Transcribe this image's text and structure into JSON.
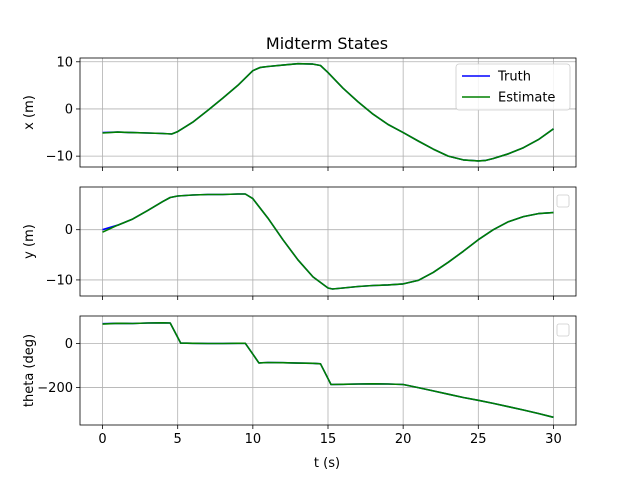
{
  "chart_data": {
    "type": "line",
    "title": "Midterm States",
    "xlabel": "t (s)",
    "xlim": [
      -1.5,
      31.5
    ],
    "xticks": [
      0,
      5,
      10,
      15,
      20,
      25,
      30
    ],
    "grid": true,
    "subplots": [
      {
        "ylabel": "x (m)",
        "ylim": [
          -12.3,
          10.8
        ],
        "yticks": [
          10,
          0,
          -10
        ],
        "legend": {
          "placement": "top-right",
          "entries": [
            "Truth",
            "Estimate"
          ]
        },
        "series": [
          {
            "name": "Truth",
            "color": "#0000ff",
            "x": [
              0,
              1,
              2,
              3,
              4,
              4.6,
              5,
              6,
              7,
              8,
              9,
              10,
              10.5,
              11,
              12,
              13,
              14,
              14.5,
              15,
              16,
              17,
              18,
              19,
              20,
              21,
              22,
              23,
              24,
              25,
              25.5,
              26,
              27,
              28,
              29,
              30
            ],
            "y": [
              -5,
              -4.9,
              -5,
              -5.1,
              -5.2,
              -5.3,
              -4.8,
              -2.8,
              -0.3,
              2.3,
              5,
              8.1,
              8.8,
              9,
              9.3,
              9.6,
              9.5,
              9.2,
              7.7,
              4.4,
              1.5,
              -1.1,
              -3.3,
              -5,
              -6.8,
              -8.5,
              -10,
              -10.8,
              -11,
              -10.9,
              -10.5,
              -9.5,
              -8.2,
              -6.5,
              -4.2
            ]
          },
          {
            "name": "Estimate",
            "color": "#008000",
            "x": [
              0,
              1,
              2,
              3,
              4,
              4.6,
              5,
              6,
              7,
              8,
              9,
              10,
              10.5,
              11,
              12,
              13,
              14,
              14.5,
              15,
              16,
              17,
              18,
              19,
              20,
              21,
              22,
              23,
              24,
              25,
              25.5,
              26,
              27,
              28,
              29,
              30
            ],
            "y": [
              -5.1,
              -4.9,
              -5,
              -5.1,
              -5.2,
              -5.3,
              -4.8,
              -2.8,
              -0.3,
              2.3,
              5,
              8.1,
              8.8,
              9,
              9.3,
              9.6,
              9.5,
              9.2,
              7.7,
              4.4,
              1.5,
              -1.1,
              -3.3,
              -5,
              -6.8,
              -8.5,
              -10,
              -10.8,
              -11,
              -10.9,
              -10.5,
              -9.5,
              -8.2,
              -6.5,
              -4.2
            ]
          }
        ]
      },
      {
        "ylabel": "y (m)",
        "ylim": [
          -13.2,
          8.5
        ],
        "yticks": [
          0,
          -10
        ],
        "legend": {
          "placement": "top-right",
          "entries": []
        },
        "series": [
          {
            "name": "Truth",
            "color": "#0000ff",
            "x": [
              0,
              1,
              2,
              3,
              4,
              4.5,
              5,
              6,
              7,
              8,
              9,
              9.5,
              10,
              11,
              12,
              13,
              14,
              15,
              15.3,
              16,
              17,
              18,
              19,
              20,
              21,
              22,
              23,
              24,
              25,
              26,
              27,
              28,
              29,
              30
            ],
            "y": [
              0,
              0.9,
              2.1,
              3.8,
              5.6,
              6.4,
              6.7,
              6.9,
              7,
              7,
              7.1,
              7.1,
              6.2,
              2.3,
              -2,
              -6,
              -9.4,
              -11.6,
              -11.8,
              -11.6,
              -11.3,
              -11.1,
              -11,
              -10.8,
              -10.1,
              -8.5,
              -6.5,
              -4.3,
              -2,
              0,
              1.6,
              2.6,
              3.2,
              3.4
            ]
          },
          {
            "name": "Estimate",
            "color": "#008000",
            "x": [
              0,
              1,
              2,
              3,
              4,
              4.5,
              5,
              6,
              7,
              8,
              9,
              9.5,
              10,
              11,
              12,
              13,
              14,
              15,
              15.3,
              16,
              17,
              18,
              19,
              20,
              21,
              22,
              23,
              24,
              25,
              26,
              27,
              28,
              29,
              30
            ],
            "y": [
              -0.5,
              0.9,
              2.1,
              3.8,
              5.6,
              6.4,
              6.7,
              6.9,
              7,
              7,
              7.1,
              7.1,
              6.2,
              2.3,
              -2,
              -6,
              -9.4,
              -11.6,
              -11.8,
              -11.6,
              -11.3,
              -11.1,
              -11,
              -10.8,
              -10.1,
              -8.5,
              -6.5,
              -4.3,
              -2,
              0,
              1.6,
              2.6,
              3.2,
              3.4
            ]
          }
        ]
      },
      {
        "ylabel": "theta (deg)",
        "ylim": [
          -370,
          125
        ],
        "yticks": [
          0,
          -200
        ],
        "legend": {
          "placement": "top-right",
          "entries": []
        },
        "series": [
          {
            "name": "Truth",
            "color": "#0000ff",
            "x": [
              0,
              1,
              2,
              3,
              4,
              4.5,
              5.2,
              6,
              7,
              8,
              9,
              9.5,
              10.4,
              11,
              12,
              13,
              14,
              14.5,
              15.2,
              16,
              17,
              18,
              19,
              20,
              21,
              22,
              23,
              24,
              25,
              26,
              27,
              28,
              29,
              30
            ],
            "y": [
              90,
              92,
              91,
              93,
              94,
              93,
              2,
              1,
              0,
              0,
              1,
              1,
              -88,
              -86,
              -87,
              -89,
              -90,
              -92,
              -186,
              -185,
              -184,
              -183,
              -184,
              -186,
              -200,
              -215,
              -230,
              -245,
              -258,
              -272,
              -287,
              -302,
              -318,
              -335
            ]
          },
          {
            "name": "Estimate",
            "color": "#008000",
            "x": [
              0,
              1,
              2,
              3,
              4,
              4.5,
              5.2,
              6,
              7,
              8,
              9,
              9.5,
              10.4,
              11,
              12,
              13,
              14,
              14.5,
              15.2,
              16,
              17,
              18,
              19,
              20,
              21,
              22,
              23,
              24,
              25,
              26,
              27,
              28,
              29,
              30
            ],
            "y": [
              88,
              92,
              91,
              93,
              94,
              93,
              2,
              1,
              0,
              0,
              1,
              1,
              -88,
              -86,
              -87,
              -89,
              -90,
              -92,
              -186,
              -185,
              -184,
              -183,
              -184,
              -186,
              -200,
              -215,
              -230,
              -245,
              -258,
              -272,
              -287,
              -302,
              -318,
              -335
            ]
          }
        ]
      }
    ]
  }
}
